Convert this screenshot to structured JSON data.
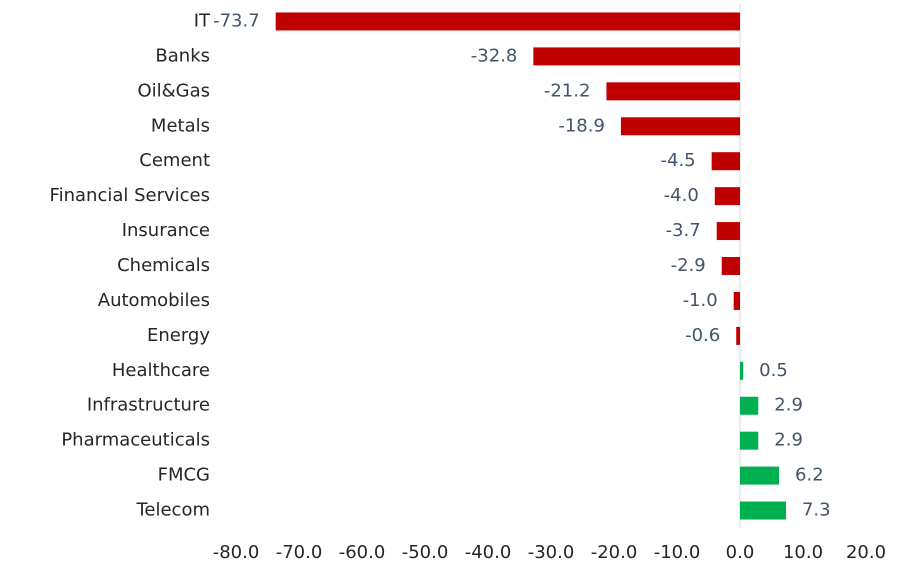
{
  "chart_data": {
    "type": "bar",
    "orientation": "horizontal",
    "categories": [
      "IT",
      "Banks",
      "Oil&Gas",
      "Metals",
      "Cement",
      "Financial Services",
      "Insurance",
      "Chemicals",
      "Automobiles",
      "Energy",
      "Healthcare",
      "Infrastructure",
      "Pharmaceuticals",
      "FMCG",
      "Telecom"
    ],
    "values": [
      -73.7,
      -32.8,
      -21.2,
      -18.9,
      -4.5,
      -4.0,
      -3.7,
      -2.9,
      -1.0,
      -0.6,
      0.5,
      2.9,
      2.9,
      6.2,
      7.3
    ],
    "value_labels": [
      "-73.7",
      "-32.8",
      "-21.2",
      "-18.9",
      "-4.5",
      "-4.0",
      "-3.7",
      "-2.9",
      "-1.0",
      "-0.6",
      "0.5",
      "2.9",
      "2.9",
      "6.2",
      "7.3"
    ],
    "negative_color": "#c00000",
    "positive_color": "#00b050",
    "xlim": [
      -80,
      20
    ],
    "xticks": [
      {
        "value": -80,
        "label": "-80.0"
      },
      {
        "value": -70,
        "label": "-70.0"
      },
      {
        "value": -60,
        "label": "-60.0"
      },
      {
        "value": -50,
        "label": "-50.0"
      },
      {
        "value": -40,
        "label": "-40.0"
      },
      {
        "value": -30,
        "label": "-30.0"
      },
      {
        "value": -20,
        "label": "-20.0"
      },
      {
        "value": -10,
        "label": "-10.0"
      },
      {
        "value": 0,
        "label": "0.0"
      },
      {
        "value": 10,
        "label": "10.0"
      },
      {
        "value": 20,
        "label": "20.0"
      }
    ],
    "grid": false
  }
}
